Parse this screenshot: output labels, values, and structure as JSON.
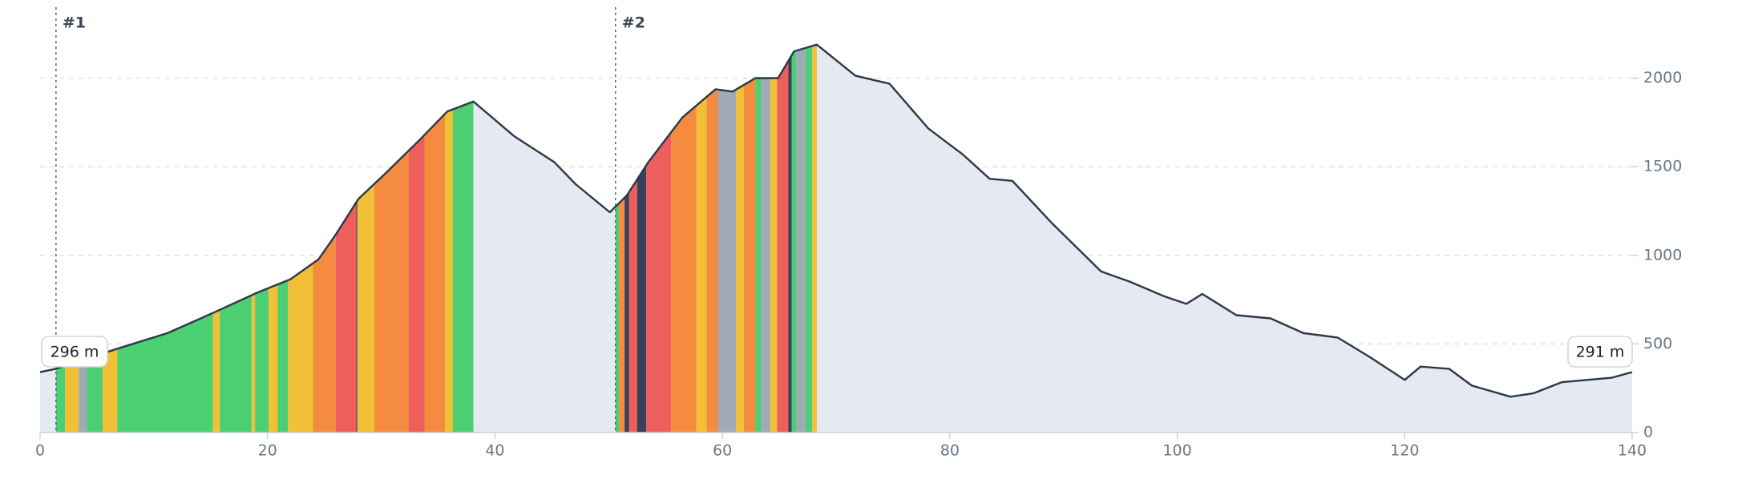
{
  "chart_data": {
    "type": "area",
    "x": [
      0,
      1.4,
      6.8,
      11.2,
      15.2,
      19.1,
      22,
      24.5,
      26,
      28,
      30.4,
      33.4,
      35.8,
      38.1,
      41.7,
      45.2,
      47.1,
      50.1,
      51.6,
      53.5,
      56.5,
      59.4,
      60.9,
      62.9,
      64.9,
      66.3,
      68.3,
      71.7,
      74.7,
      78.1,
      81.1,
      83.5,
      85.5,
      89,
      93.3,
      95.8,
      98.8,
      100.8,
      102.2,
      105.2,
      108.2,
      111.1,
      114.1,
      117,
      120,
      121.4,
      123.9,
      125.9,
      129.3,
      131.3,
      133.8,
      138.2,
      140
    ],
    "values": [
      341,
      360,
      473,
      561,
      675,
      789,
      864,
      978,
      1117,
      1319,
      1464,
      1653,
      1811,
      1868,
      1672,
      1527,
      1401,
      1243,
      1338,
      1527,
      1779,
      1937,
      1924,
      2000,
      2000,
      2151,
      2189,
      2013,
      1968,
      1716,
      1571,
      1432,
      1420,
      1180,
      909,
      852,
      770,
      726,
      782,
      662,
      644,
      561,
      536,
      423,
      297,
      372,
      360,
      265,
      202,
      221,
      284,
      309,
      341
    ],
    "color": "#e5e9f1",
    "line_color": "#2d3748",
    "xlim": [
      0,
      140
    ],
    "xticks": [
      0,
      20,
      40,
      60,
      80,
      100,
      120,
      140
    ],
    "ylim": [
      0,
      2400
    ],
    "yticks": [
      0,
      500,
      1000,
      1500,
      2000
    ],
    "grid": true,
    "gradient_segments": {
      "start": [
        1.4,
        2.2,
        3.4,
        4.1,
        5.5,
        6.8,
        15.2,
        15.8,
        18.6,
        18.9,
        20.1,
        20.9,
        21.8,
        24.0,
        26.0,
        27.8,
        27.9,
        29.4,
        32.4,
        33.8,
        35.6,
        36.3,
        50.6,
        50.9,
        51.4,
        51.8,
        52.5,
        53.3,
        55.5,
        57.7,
        58.6,
        59.6,
        61.2,
        61.9,
        62.9,
        63.4,
        64.2,
        64.8,
        65.8,
        66.1,
        66.5,
        67.3,
        67.9
      ],
      "end": [
        2.2,
        3.4,
        4.1,
        5.5,
        6.8,
        15.2,
        15.8,
        18.6,
        18.9,
        20.1,
        20.9,
        21.8,
        24.0,
        26.0,
        27.8,
        27.9,
        29.4,
        32.4,
        33.8,
        35.6,
        36.3,
        38.1,
        50.9,
        51.4,
        51.8,
        52.5,
        53.3,
        55.5,
        57.7,
        58.6,
        59.6,
        61.2,
        61.9,
        62.9,
        63.4,
        64.2,
        64.8,
        65.8,
        66.1,
        66.5,
        67.3,
        67.9,
        68.3
      ],
      "colors": [
        "#4ccf72",
        "#f2c037",
        "#a0a9b8",
        "#4ccf72",
        "#f2c037",
        "#4ccf72",
        "#f2c037",
        "#4ccf72",
        "#f2c037",
        "#4ccf72",
        "#f2c037",
        "#4ccf72",
        "#f2c037",
        "#f58b3f",
        "#ee5f5b",
        "#3a3f5c",
        "#f2c037",
        "#f58b3f",
        "#ee5f5b",
        "#f58b3f",
        "#f2c037",
        "#4ccf72",
        "#4ccf72",
        "#f58b3f",
        "#3a3f5c",
        "#ee5f5b",
        "#3a3f5c",
        "#ee5f5b",
        "#f58b3f",
        "#f2c037",
        "#f58b3f",
        "#a0a9b8",
        "#f2c037",
        "#f58b3f",
        "#4ccf72",
        "#a0a9b8",
        "#f2c037",
        "#ee5f5b",
        "#3a3f5c",
        "#4ccf72",
        "#a0a9b8",
        "#4ccf72",
        "#f2c037"
      ]
    },
    "markers": [
      {
        "x": 1.4,
        "label": "#1"
      },
      {
        "x": 50.6,
        "label": "#2"
      }
    ],
    "annotations": [
      "296 m",
      "291 m"
    ]
  }
}
